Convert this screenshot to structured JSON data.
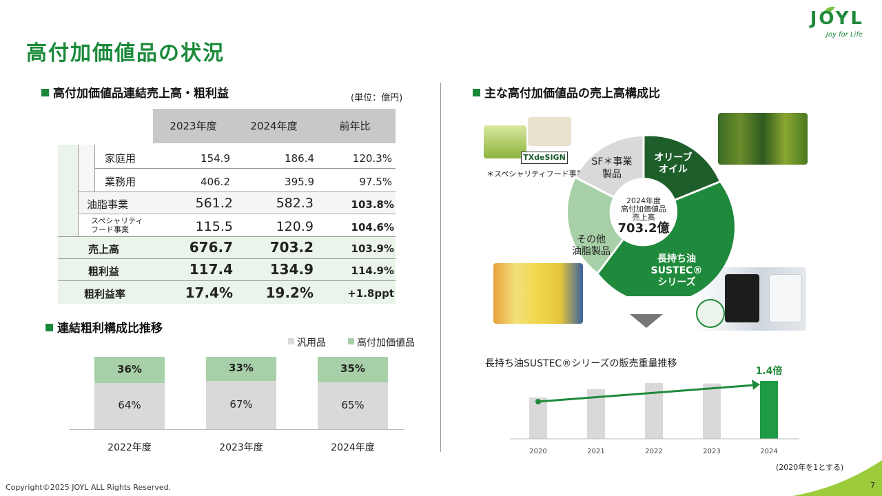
{
  "page": {
    "title": "高付加価値品の状況",
    "copyright": "Copyright©2025 JOYL ALL Rights Reserved.",
    "page_number": "7",
    "logo": {
      "name": "JOYL",
      "tagline": "Joy for Life"
    }
  },
  "sales_table": {
    "heading": "高付加価値品連結売上高・粗利益",
    "unit": "(単位：億円)",
    "columns": [
      "2023年度",
      "2024年度",
      "前年比"
    ],
    "rows": [
      {
        "label": "家庭用",
        "v2023": "154.9",
        "v2024": "186.4",
        "yoy": "120.3%"
      },
      {
        "label": "業務用",
        "v2023": "406.2",
        "v2024": "395.9",
        "yoy": "97.5%"
      },
      {
        "label": "油脂事業",
        "v2023": "561.2",
        "v2024": "582.3",
        "yoy": "103.8%"
      },
      {
        "label": "スペシャリティ\nフード事業",
        "label_line1": "スペシャリティ",
        "label_line2": "フード事業",
        "v2023": "115.5",
        "v2024": "120.9",
        "yoy": "104.6%"
      },
      {
        "label": "売上高",
        "v2023": "676.7",
        "v2024": "703.2",
        "yoy": "103.9%"
      },
      {
        "label": "粗利益",
        "v2023": "117.4",
        "v2024": "134.9",
        "yoy": "114.9%"
      },
      {
        "label": "粗利益率",
        "v2023": "17.4%",
        "v2024": "19.2%",
        "yoy": "+1.8ppt"
      }
    ]
  },
  "margin_chart": {
    "heading": "連結粗利構成比推移",
    "legend": [
      "汎用品",
      "高付加価値品"
    ],
    "colors": {
      "general": "#d9d9d9",
      "value_added": "#a8d0a8"
    },
    "chart_data": {
      "type": "bar",
      "stacked": true,
      "categories": [
        "2022年度",
        "2023年度",
        "2024年度"
      ],
      "series": [
        {
          "name": "汎用品",
          "values": [
            64,
            67,
            65
          ]
        },
        {
          "name": "高付加価値品",
          "values": [
            36,
            33,
            35
          ]
        }
      ],
      "labels_general": [
        "64%",
        "67%",
        "65%"
      ],
      "labels_value_added": [
        "36%",
        "33%",
        "35%"
      ]
    }
  },
  "composition": {
    "heading": "主な高付加価値品の売上高構成比",
    "center": {
      "line1": "2024年度",
      "line2": "高付加価値品",
      "line3": "売上高",
      "value": "703.2億"
    },
    "segments": {
      "olive": "オリーブ\nオイル",
      "olive_l1": "オリーブ",
      "olive_l2": "オイル",
      "sustec_l1": "長持ち油",
      "sustec_l2": "SUSTEC®",
      "sustec_l3": "シリーズ",
      "other_l1": "その他",
      "other_l2": "油脂製品",
      "sf_l1": "SF＊事業",
      "sf_l2": "製品"
    },
    "footnote": "＊スペシャリティフード事業",
    "brand_tag": "TXdeSIGN",
    "colors": {
      "olive": "#1e5e2a",
      "sustec": "#1f8a3b",
      "other": "#a8d0a8",
      "sf": "#d9d9d9"
    }
  },
  "sustec_chart": {
    "title": "長持ち油SUSTEC®シリーズの販売重量推移",
    "callout": "1.4倍",
    "note": "(2020年を1とする)",
    "chart_data": {
      "type": "bar",
      "categories": [
        "2020",
        "2021",
        "2022",
        "2023",
        "2024"
      ],
      "values": [
        1.0,
        1.2,
        1.35,
        1.34,
        1.4
      ],
      "highlight": "2024",
      "colors": {
        "base": "#d9d9d9",
        "highlight": "#1f9a45"
      }
    }
  }
}
